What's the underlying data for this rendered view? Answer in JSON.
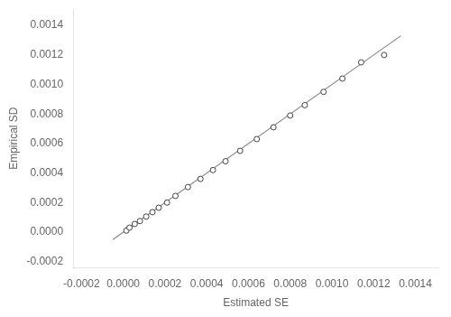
{
  "chart_data": {
    "type": "scatter",
    "xlabel": "Estimated SE",
    "ylabel": "Empirical SD",
    "series": [
      {
        "type": "line",
        "color": "#888888",
        "line_style": "solid",
        "x": [
          -5e-05,
          0.00133
        ],
        "values": [
          -5e-05,
          0.00133
        ]
      },
      {
        "type": "scatter",
        "color": "#444444",
        "marker": "circle",
        "x": [
          1.5e-05,
          3e-05,
          5.5e-05,
          8e-05,
          0.00011,
          0.00014,
          0.00017,
          0.00021,
          0.00025,
          0.00031,
          0.00037,
          0.00043,
          0.00049,
          0.00056,
          0.00064,
          0.00072,
          0.0008,
          0.00087,
          0.00096,
          0.00105,
          0.00114,
          0.00125
        ],
        "values": [
          1e-05,
          3e-05,
          5.5e-05,
          7.5e-05,
          0.000105,
          0.000135,
          0.000165,
          0.0002,
          0.000245,
          0.000305,
          0.00036,
          0.00042,
          0.00048,
          0.00055,
          0.00063,
          0.00071,
          0.00079,
          0.00086,
          0.00095,
          0.00104,
          0.00115,
          0.0012
        ]
      }
    ],
    "xlim": [
      -0.00024,
      0.00151
    ],
    "ylim": [
      -0.00024,
      0.00151
    ],
    "xticks": [
      {
        "value": -0.0002,
        "label": "-0.0002"
      },
      {
        "value": 0,
        "label": "0.0000"
      },
      {
        "value": 0.0002,
        "label": "0.0002"
      },
      {
        "value": 0.0004,
        "label": "0.0004"
      },
      {
        "value": 0.0006,
        "label": "0.0006"
      },
      {
        "value": 0.0008,
        "label": "0.0008"
      },
      {
        "value": 0.001,
        "label": "0.0010"
      },
      {
        "value": 0.0012,
        "label": "0.0012"
      },
      {
        "value": 0.0014,
        "label": "0.0014"
      }
    ],
    "yticks": [
      {
        "value": -0.0002,
        "label": "-0.0002"
      },
      {
        "value": 0,
        "label": "0.0000"
      },
      {
        "value": 0.0002,
        "label": "0.0002"
      },
      {
        "value": 0.0004,
        "label": "0.0004"
      },
      {
        "value": 0.0006,
        "label": "0.0006"
      },
      {
        "value": 0.0008,
        "label": "0.0008"
      },
      {
        "value": 0.001,
        "label": "0.0010"
      },
      {
        "value": 0.0012,
        "label": "0.0012"
      },
      {
        "value": 0.0014,
        "label": "0.0014"
      }
    ],
    "grid": false
  }
}
